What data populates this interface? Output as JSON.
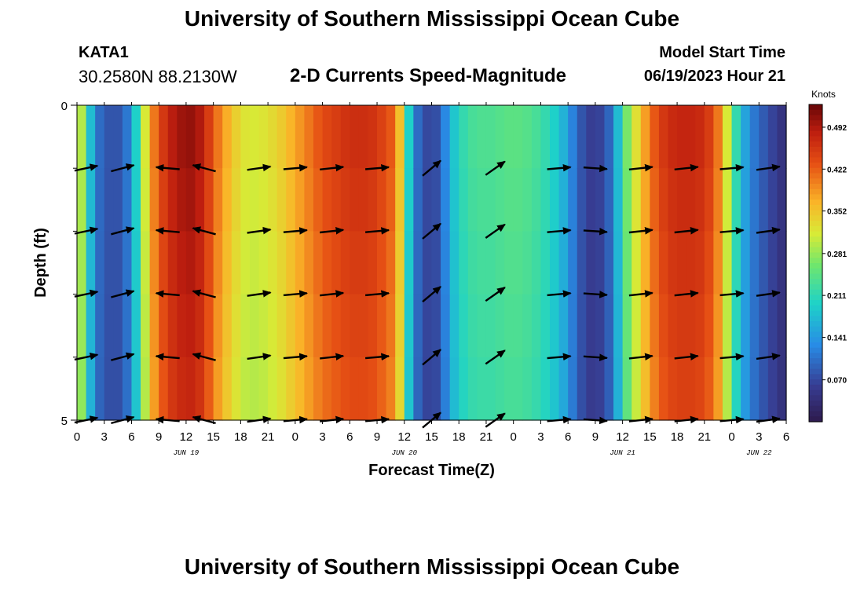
{
  "header": {
    "title": "University of Southern Mississippi Ocean Cube",
    "footer_title": "University of Southern Mississippi Ocean Cube",
    "station": "KATA1",
    "coordinates": "30.2580N  88.2130W",
    "plot_title": "2-D Currents Speed-Magnitude",
    "model_start_label": "Model Start Time",
    "model_start_value": "06/19/2023 Hour 21"
  },
  "chart_data": {
    "type": "heatmap",
    "title": "2-D Currents Speed-Magnitude",
    "xlabel": "Forecast Time(Z)",
    "ylabel": "Depth (ft)",
    "x_hours_range": [
      0,
      78
    ],
    "y_range": [
      0,
      5
    ],
    "y_ticks": [
      "0",
      "5"
    ],
    "x_ticks": [
      {
        "h": 0,
        "label": "0"
      },
      {
        "h": 3,
        "label": "3"
      },
      {
        "h": 6,
        "label": "6"
      },
      {
        "h": 9,
        "label": "9"
      },
      {
        "h": 12,
        "label": "12"
      },
      {
        "h": 15,
        "label": "15"
      },
      {
        "h": 18,
        "label": "18"
      },
      {
        "h": 21,
        "label": "21"
      },
      {
        "h": 24,
        "label": "0"
      },
      {
        "h": 27,
        "label": "3"
      },
      {
        "h": 30,
        "label": "6"
      },
      {
        "h": 33,
        "label": "9"
      },
      {
        "h": 36,
        "label": "12"
      },
      {
        "h": 39,
        "label": "15"
      },
      {
        "h": 42,
        "label": "18"
      },
      {
        "h": 45,
        "label": "21"
      },
      {
        "h": 48,
        "label": "0"
      },
      {
        "h": 51,
        "label": "3"
      },
      {
        "h": 54,
        "label": "6"
      },
      {
        "h": 57,
        "label": "9"
      },
      {
        "h": 60,
        "label": "12"
      },
      {
        "h": 63,
        "label": "15"
      },
      {
        "h": 66,
        "label": "18"
      },
      {
        "h": 69,
        "label": "21"
      },
      {
        "h": 72,
        "label": "0"
      },
      {
        "h": 75,
        "label": "3"
      },
      {
        "h": 78,
        "label": "6"
      }
    ],
    "day_labels": [
      {
        "h": 12,
        "label": "JUN 19"
      },
      {
        "h": 36,
        "label": "JUN 20"
      },
      {
        "h": 60,
        "label": "JUN 21"
      },
      {
        "h": 75,
        "label": "JUN 22"
      }
    ],
    "colorbar": {
      "units": "Knots",
      "min": 0.0,
      "max": 0.53,
      "ticks": [
        "0.492",
        "0.422",
        "0.352",
        "0.281",
        "0.211",
        "0.141",
        "0.070"
      ],
      "tick_values": [
        0.492,
        0.422,
        0.352,
        0.281,
        0.211,
        0.141,
        0.07
      ]
    },
    "speed_profile_by_hour": [
      [
        0,
        0.34
      ],
      [
        0.5,
        0.3
      ],
      [
        1,
        0.26
      ],
      [
        1.5,
        0.18
      ],
      [
        2,
        0.12
      ],
      [
        3,
        0.09
      ],
      [
        4,
        0.08
      ],
      [
        5,
        0.09
      ],
      [
        6,
        0.14
      ],
      [
        6.5,
        0.2
      ],
      [
        7,
        0.26
      ],
      [
        7.5,
        0.32
      ],
      [
        8,
        0.38
      ],
      [
        9,
        0.44
      ],
      [
        10,
        0.48
      ],
      [
        11,
        0.5
      ],
      [
        12,
        0.51
      ],
      [
        13,
        0.51
      ],
      [
        14,
        0.48
      ],
      [
        15,
        0.43
      ],
      [
        16,
        0.39
      ],
      [
        17,
        0.36
      ],
      [
        18,
        0.33
      ],
      [
        19,
        0.32
      ],
      [
        20,
        0.32
      ],
      [
        21,
        0.33
      ],
      [
        22,
        0.34
      ],
      [
        23,
        0.36
      ],
      [
        24,
        0.38
      ],
      [
        25,
        0.4
      ],
      [
        26,
        0.42
      ],
      [
        27,
        0.44
      ],
      [
        28,
        0.45
      ],
      [
        29,
        0.46
      ],
      [
        30,
        0.47
      ],
      [
        31,
        0.47
      ],
      [
        32,
        0.47
      ],
      [
        33,
        0.46
      ],
      [
        34,
        0.44
      ],
      [
        35,
        0.42
      ],
      [
        35.5,
        0.36
      ],
      [
        36,
        0.3
      ],
      [
        36.5,
        0.2
      ],
      [
        37,
        0.13
      ],
      [
        38,
        0.08
      ],
      [
        39,
        0.07
      ],
      [
        40,
        0.09
      ],
      [
        40.5,
        0.13
      ],
      [
        41,
        0.17
      ],
      [
        42,
        0.21
      ],
      [
        43,
        0.23
      ],
      [
        44,
        0.24
      ],
      [
        45,
        0.24
      ],
      [
        46,
        0.24
      ],
      [
        47,
        0.25
      ],
      [
        48,
        0.25
      ],
      [
        49,
        0.25
      ],
      [
        50,
        0.24
      ],
      [
        51,
        0.23
      ],
      [
        52,
        0.21
      ],
      [
        53,
        0.19
      ],
      [
        54,
        0.15
      ],
      [
        55,
        0.1
      ],
      [
        56,
        0.07
      ],
      [
        57,
        0.06
      ],
      [
        58,
        0.08
      ],
      [
        59,
        0.12
      ],
      [
        59.5,
        0.18
      ],
      [
        60,
        0.24
      ],
      [
        61,
        0.3
      ],
      [
        62,
        0.36
      ],
      [
        63,
        0.41
      ],
      [
        64,
        0.45
      ],
      [
        65,
        0.47
      ],
      [
        66,
        0.48
      ],
      [
        67,
        0.48
      ],
      [
        68,
        0.48
      ],
      [
        69,
        0.47
      ],
      [
        70,
        0.44
      ],
      [
        71,
        0.38
      ],
      [
        71.5,
        0.32
      ],
      [
        72,
        0.26
      ],
      [
        73,
        0.18
      ],
      [
        74,
        0.13
      ],
      [
        75,
        0.1
      ],
      [
        76,
        0.08
      ],
      [
        77,
        0.06
      ],
      [
        78,
        0.04
      ]
    ],
    "depth_rows": 5,
    "vector_rows_depth": [
      1,
      2,
      3,
      4,
      5
    ],
    "vectors": [
      {
        "h": 1,
        "dir": -12
      },
      {
        "h": 5,
        "dir": -15
      },
      {
        "h": 10,
        "dir": 185
      },
      {
        "h": 14,
        "dir": 195
      },
      {
        "h": 20,
        "dir": -8
      },
      {
        "h": 24,
        "dir": -5
      },
      {
        "h": 28,
        "dir": -6
      },
      {
        "h": 33,
        "dir": -5
      },
      {
        "h": 39,
        "dir": -40
      },
      {
        "h": 46,
        "dir": -35
      },
      {
        "h": 53,
        "dir": -5
      },
      {
        "h": 57,
        "dir": 4
      },
      {
        "h": 62,
        "dir": -6
      },
      {
        "h": 67,
        "dir": -6
      },
      {
        "h": 72,
        "dir": -5
      },
      {
        "h": 76,
        "dir": -8
      }
    ]
  }
}
